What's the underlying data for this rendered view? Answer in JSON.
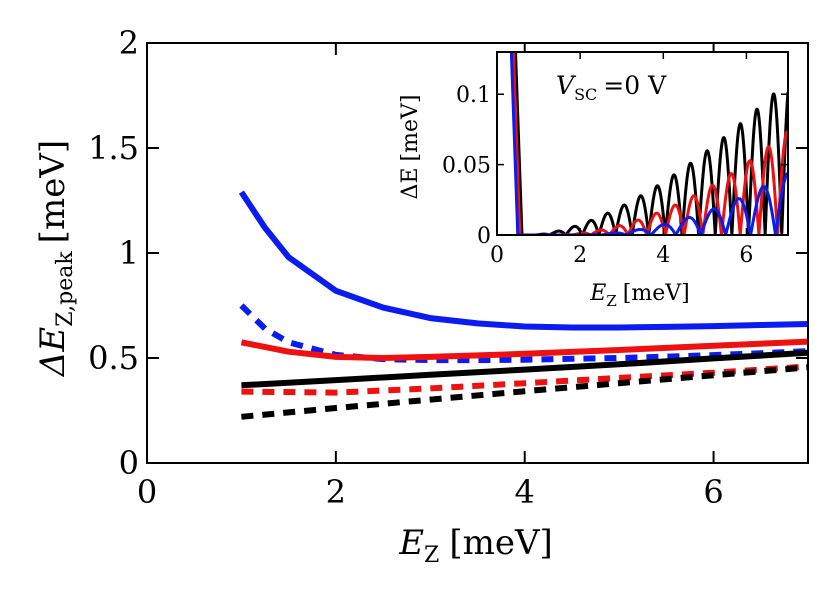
{
  "chart_data": [
    {
      "type": "line",
      "title": "",
      "xlabel_main": "E",
      "xlabel_sub": "Z",
      "xlabel_unit": "[meV]",
      "ylabel_main": "ΔE",
      "ylabel_sub": "Z,peak",
      "ylabel_unit": "[meV]",
      "xlim": [
        0,
        7
      ],
      "ylim": [
        0,
        2
      ],
      "xticks": [
        0,
        2,
        4,
        6
      ],
      "xtick_labels": [
        "0",
        "2",
        "4",
        "6"
      ],
      "yticks": [
        0,
        0.5,
        1,
        1.5,
        2
      ],
      "ytick_labels": [
        "0",
        "0.5",
        "1",
        "1.5",
        "2"
      ],
      "series": [
        {
          "name": "blue-solid",
          "color": "#0a1cf0",
          "style": "solid",
          "x": [
            1.0,
            1.25,
            1.5,
            2.0,
            2.5,
            3.0,
            3.5,
            4.0,
            4.5,
            5.0,
            5.5,
            6.0,
            6.5,
            7.0
          ],
          "y": [
            1.29,
            1.12,
            0.98,
            0.82,
            0.74,
            0.69,
            0.665,
            0.65,
            0.645,
            0.645,
            0.648,
            0.652,
            0.657,
            0.662
          ]
        },
        {
          "name": "blue-dashed",
          "color": "#0a1cf0",
          "style": "dashed",
          "x": [
            1.0,
            1.25,
            1.5,
            2.0,
            2.5,
            3.0,
            3.5,
            4.0,
            4.5,
            5.0,
            5.5,
            6.0,
            6.5,
            7.0
          ],
          "y": [
            0.75,
            0.64,
            0.575,
            0.515,
            0.495,
            0.49,
            0.49,
            0.492,
            0.496,
            0.5,
            0.506,
            0.514,
            0.523,
            0.533
          ]
        },
        {
          "name": "red-solid",
          "color": "#ee1111",
          "style": "solid",
          "x": [
            1.0,
            1.5,
            2.0,
            2.5,
            3.0,
            4.0,
            5.0,
            6.0,
            7.0
          ],
          "y": [
            0.575,
            0.53,
            0.505,
            0.5,
            0.505,
            0.52,
            0.538,
            0.558,
            0.578
          ]
        },
        {
          "name": "red-dashed",
          "color": "#ee1111",
          "style": "dashed",
          "x": [
            1.0,
            2.0,
            3.0,
            4.0,
            5.0,
            6.0,
            7.0
          ],
          "y": [
            0.34,
            0.335,
            0.355,
            0.38,
            0.405,
            0.43,
            0.46
          ]
        },
        {
          "name": "black-solid",
          "color": "#000000",
          "style": "solid",
          "x": [
            1.0,
            2.0,
            3.0,
            4.0,
            5.0,
            6.0,
            7.0
          ],
          "y": [
            0.37,
            0.395,
            0.42,
            0.445,
            0.47,
            0.498,
            0.525
          ]
        },
        {
          "name": "black-dashed",
          "color": "#000000",
          "style": "dashed",
          "x": [
            1.0,
            2.0,
            3.0,
            4.0,
            5.0,
            6.0,
            7.0
          ],
          "y": [
            0.22,
            0.262,
            0.302,
            0.342,
            0.38,
            0.418,
            0.455
          ]
        }
      ]
    },
    {
      "type": "line",
      "title": "V_SC = 0 V",
      "annotation_main": "V",
      "annotation_sub": "SC",
      "annotation_rest": "=0 V",
      "xlabel_main": "E",
      "xlabel_sub": "Z",
      "xlabel_unit": "[meV]",
      "ylabel_main": "ΔE",
      "ylabel_unit": "[meV]",
      "xlim": [
        0,
        7
      ],
      "ylim": [
        0,
        0.13
      ],
      "xticks": [
        0,
        2,
        4,
        6
      ],
      "xtick_labels": [
        "0",
        "2",
        "4",
        "6"
      ],
      "yticks": [
        0,
        0.05,
        0.1
      ],
      "ytick_labels": [
        "0",
        "0.05",
        "0.1"
      ],
      "series": [
        {
          "name": "black",
          "color": "#000000",
          "onset": 0.6,
          "start": 0.85,
          "period": 0.4,
          "amp_at_max": 0.11,
          "growth": 1.6
        },
        {
          "name": "red",
          "color": "#ee1111",
          "onset": 0.55,
          "start": 1.35,
          "period": 0.45,
          "amp_at_max": 0.074,
          "growth": 1.9
        },
        {
          "name": "blue",
          "color": "#0a1cf0",
          "onset": 0.5,
          "start": 1.9,
          "period": 0.6,
          "amp_at_max": 0.044,
          "growth": 2.0
        }
      ]
    }
  ]
}
